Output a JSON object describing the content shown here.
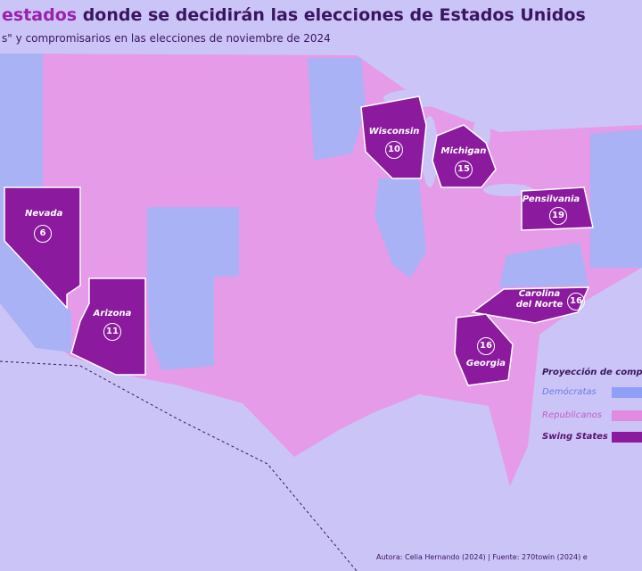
{
  "header": {
    "title_highlight": "estados",
    "title": "donde se decidirán las elecciones de Estados Unidos",
    "subtitle": "s\" y compromisarios en las elecciones de noviembre de 2024"
  },
  "states": [
    {
      "name": "Nevada",
      "electors": 6
    },
    {
      "name": "Arizona",
      "electors": 11
    },
    {
      "name": "Wisconsin",
      "electors": 10
    },
    {
      "name": "Michigan",
      "electors": 15
    },
    {
      "name": "Pensilvania",
      "electors": 19
    },
    {
      "name": "Carolina del Norte",
      "electors": 16
    },
    {
      "name": "Georgia",
      "electors": 16
    }
  ],
  "legend": {
    "title": "Proyección de compr",
    "items": [
      "Demócratas",
      "Republicanos",
      "Swing States"
    ]
  },
  "footer": "Autora: Celia Hernando (2024) | Fuente: 270towin (2024) e"
}
